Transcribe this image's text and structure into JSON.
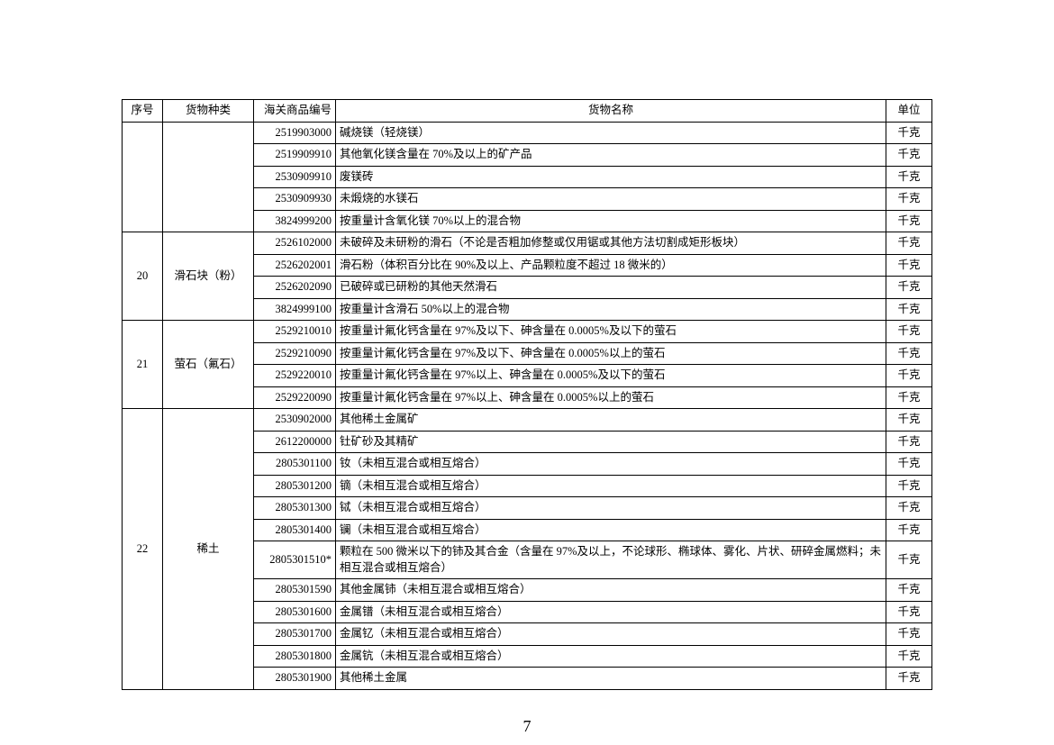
{
  "pageNumber": "7",
  "headers": {
    "seq": "序号",
    "category": "货物种类",
    "code": "海关商品编号",
    "name": "货物名称",
    "unit": "单位"
  },
  "groups": [
    {
      "seq": "",
      "category": "",
      "showSeqCat": false,
      "rows": [
        {
          "code": "2519903000",
          "name": "碱烧镁（轻烧镁）",
          "unit": "千克"
        },
        {
          "code": "2519909910",
          "name": "其他氧化镁含量在 70%及以上的矿产品",
          "unit": "千克"
        },
        {
          "code": "2530909910",
          "name": "废镁砖",
          "unit": "千克"
        },
        {
          "code": "2530909930",
          "name": "未煅烧的水镁石",
          "unit": "千克"
        },
        {
          "code": "3824999200",
          "name": "按重量计含氧化镁 70%以上的混合物",
          "unit": "千克"
        }
      ]
    },
    {
      "seq": "20",
      "category": "滑石块（粉）",
      "showSeqCat": true,
      "rows": [
        {
          "code": "2526102000",
          "name": "未破碎及未研粉的滑石（不论是否粗加修整或仅用锯或其他方法切割成矩形板块）",
          "unit": "千克"
        },
        {
          "code": "2526202001",
          "name": "滑石粉（体积百分比在 90%及以上、产品颗粒度不超过 18 微米的）",
          "unit": "千克"
        },
        {
          "code": "2526202090",
          "name": "已破碎或已研粉的其他天然滑石",
          "unit": "千克"
        },
        {
          "code": "3824999100",
          "name": "按重量计含滑石 50%以上的混合物",
          "unit": "千克"
        }
      ]
    },
    {
      "seq": "21",
      "category": "萤石（氟石）",
      "showSeqCat": true,
      "rows": [
        {
          "code": "2529210010",
          "name": "按重量计氟化钙含量在 97%及以下、砷含量在 0.0005%及以下的萤石",
          "unit": "千克"
        },
        {
          "code": "2529210090",
          "name": "按重量计氟化钙含量在 97%及以下、砷含量在 0.0005%以上的萤石",
          "unit": "千克"
        },
        {
          "code": "2529220010",
          "name": "按重量计氟化钙含量在 97%以上、砷含量在 0.0005%及以下的萤石",
          "unit": "千克"
        },
        {
          "code": "2529220090",
          "name": "按重量计氟化钙含量在 97%以上、砷含量在 0.0005%以上的萤石",
          "unit": "千克"
        }
      ]
    },
    {
      "seq": "22",
      "category": "稀土",
      "showSeqCat": true,
      "rows": [
        {
          "code": "2530902000",
          "name": "其他稀土金属矿",
          "unit": "千克"
        },
        {
          "code": "2612200000",
          "name": "钍矿砂及其精矿",
          "unit": "千克"
        },
        {
          "code": "2805301100",
          "name": "钕（未相互混合或相互熔合）",
          "unit": "千克"
        },
        {
          "code": "2805301200",
          "name": "镝（未相互混合或相互熔合）",
          "unit": "千克"
        },
        {
          "code": "2805301300",
          "name": "铽（未相互混合或相互熔合）",
          "unit": "千克"
        },
        {
          "code": "2805301400",
          "name": "镧（未相互混合或相互熔合）",
          "unit": "千克"
        },
        {
          "code": "2805301510*",
          "name": "颗粒在 500 微米以下的铈及其合金（含量在 97%及以上，不论球形、椭球体、雾化、片状、研碎金属燃料；未相互混合或相互熔合）",
          "unit": "千克"
        },
        {
          "code": "2805301590",
          "name": "其他金属铈（未相互混合或相互熔合）",
          "unit": "千克"
        },
        {
          "code": "2805301600",
          "name": "金属镨（未相互混合或相互熔合）",
          "unit": "千克"
        },
        {
          "code": "2805301700",
          "name": "金属钇（未相互混合或相互熔合）",
          "unit": "千克"
        },
        {
          "code": "2805301800",
          "name": "金属钪（未相互混合或相互熔合）",
          "unit": "千克"
        },
        {
          "code": "2805301900",
          "name": "其他稀土金属",
          "unit": "千克"
        }
      ]
    }
  ]
}
